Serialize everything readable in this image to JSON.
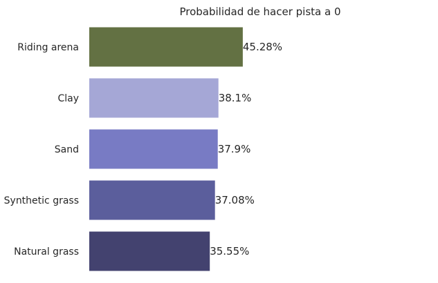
{
  "chart_data": {
    "type": "bar",
    "orientation": "horizontal",
    "title": "Probabilidad de hacer pista a 0",
    "xlabel": "",
    "ylabel": "",
    "categories": [
      "Riding arena",
      "Clay",
      "Sand",
      "Synthetic grass",
      "Natural grass"
    ],
    "values": [
      45.28,
      38.1,
      37.9,
      37.08,
      35.55
    ],
    "value_labels": [
      "45.28%",
      "38.1%",
      "37.9%",
      "37.08%",
      "35.55%"
    ],
    "colors": [
      "#637143",
      "#a5a7d6",
      "#787bc4",
      "#5b5e9c",
      "#43426f"
    ],
    "xlim": [
      0,
      100
    ],
    "grid": false,
    "legend": "none"
  }
}
